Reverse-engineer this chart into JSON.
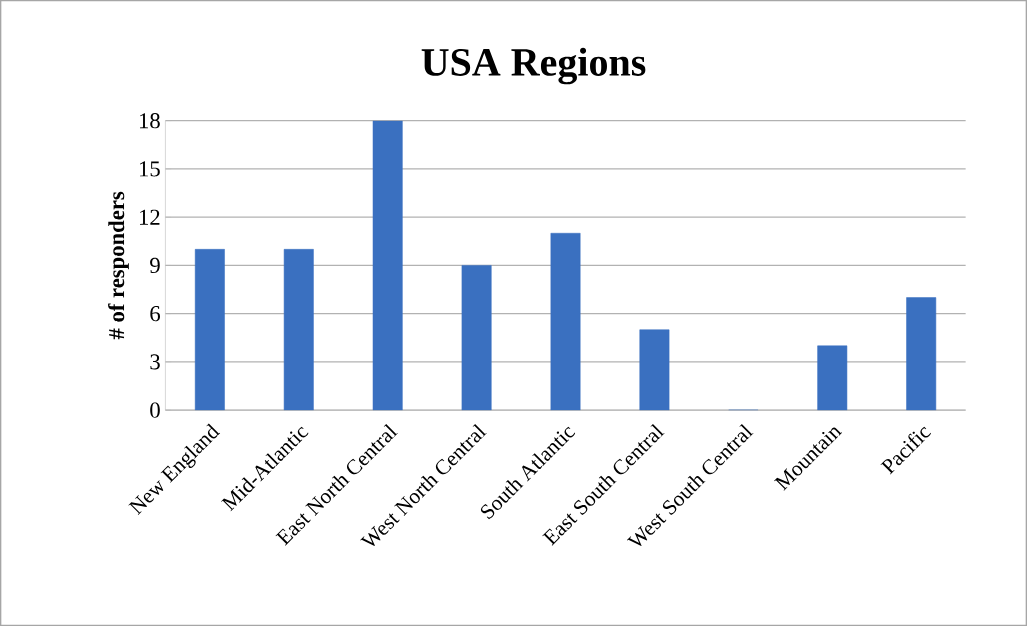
{
  "chart_data": {
    "type": "bar",
    "title": "USA Regions",
    "ylabel": "# of responders",
    "categories": [
      "New England",
      "Mid-Atlantic",
      "East North Central",
      "West North Central",
      "South Atlantic",
      "East South Central",
      "West South Central",
      "Mountain",
      "Pacific"
    ],
    "values": [
      10,
      10,
      18,
      9,
      11,
      5,
      0,
      4,
      7
    ],
    "color": "#3a70c0",
    "ylim": [
      0,
      18
    ],
    "yticks": [
      0,
      3,
      6,
      9,
      12,
      15,
      18
    ],
    "grid": "y"
  }
}
